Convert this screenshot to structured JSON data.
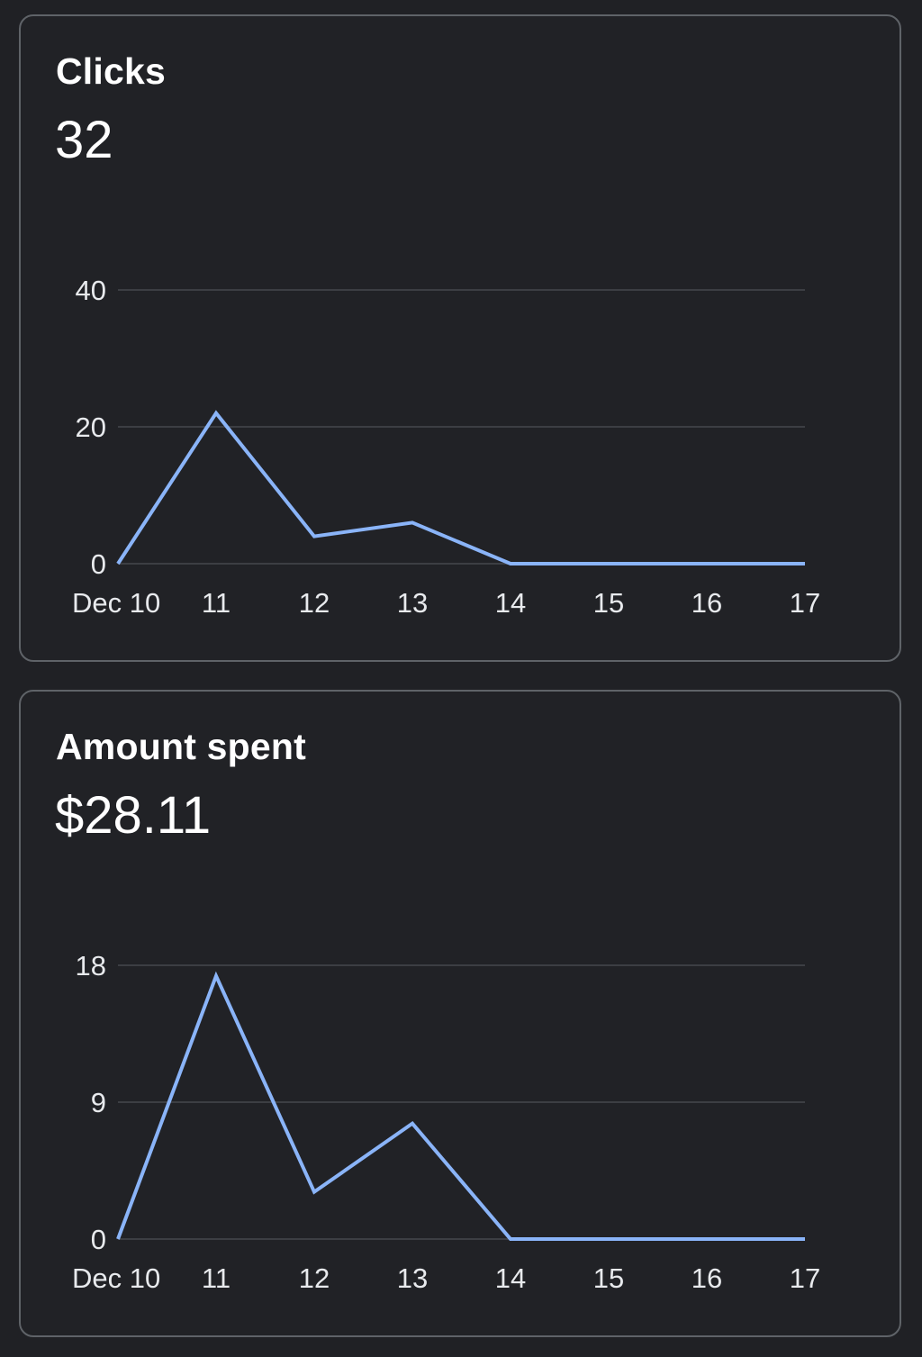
{
  "colors": {
    "background": "#202125",
    "card_border": "#5f6368",
    "gridline": "#3c3e43",
    "series_line": "#8ab4f8",
    "text": "#ffffff"
  },
  "cards": [
    {
      "title": "Clicks",
      "value": "32",
      "chart_data": {
        "type": "line",
        "categories": [
          "Dec 10",
          "11",
          "12",
          "13",
          "14",
          "15",
          "16",
          "17"
        ],
        "series": [
          {
            "values": [
              0,
              22,
              4,
              6,
              0,
              0,
              0,
              0
            ]
          }
        ],
        "ylim": [
          0,
          40
        ],
        "yticks": [
          "0",
          "20",
          "40"
        ],
        "grid": true
      }
    },
    {
      "title": "Amount spent",
      "value": "$28.11",
      "chart_data": {
        "type": "line",
        "categories": [
          "Dec 10",
          "11",
          "12",
          "13",
          "14",
          "15",
          "16",
          "17"
        ],
        "series": [
          {
            "values": [
              0,
              17.3,
              3.1,
              7.6,
              0,
              0,
              0,
              0
            ]
          }
        ],
        "ylim": [
          0,
          18
        ],
        "yticks": [
          "0",
          "9",
          "18"
        ],
        "grid": true
      }
    }
  ]
}
